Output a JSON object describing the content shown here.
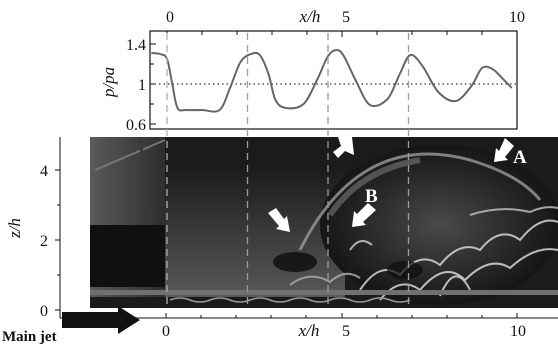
{
  "chart_data": {
    "type": "line",
    "title": "",
    "xlabel": "x/h",
    "ylabel": "p/pa",
    "xlim": [
      0,
      10
    ],
    "ylim": [
      0.6,
      1.4
    ],
    "x_ticks": [
      "0",
      "5",
      "10"
    ],
    "y_ticks": [
      "0.6",
      "1",
      "1.4"
    ],
    "reference_line": {
      "y": 1,
      "style": "dotted"
    },
    "series": [
      {
        "x": [
          -0.45,
          -0.2,
          0.0,
          0.15,
          0.3,
          0.55,
          1.0,
          1.5,
          1.8,
          2.1,
          2.4,
          2.65,
          2.9,
          3.1,
          3.4,
          3.9,
          4.3,
          4.6,
          4.85,
          5.05,
          5.4,
          5.8,
          6.3,
          6.65,
          6.95,
          7.3,
          7.75,
          8.25,
          8.7,
          9.0,
          9.3,
          9.6,
          9.85
        ],
        "y": [
          1.31,
          1.3,
          1.25,
          1.0,
          0.76,
          0.74,
          0.74,
          0.74,
          0.96,
          1.22,
          1.3,
          1.29,
          1.1,
          0.84,
          0.76,
          0.8,
          1.05,
          1.28,
          1.34,
          1.28,
          1.03,
          0.79,
          0.85,
          1.1,
          1.29,
          1.18,
          0.92,
          0.83,
          0.98,
          1.16,
          1.15,
          1.05,
          0.96
        ]
      }
    ]
  },
  "photo": {
    "top_axis_label": "x/h",
    "top_axis_ticks": [
      "0",
      "5",
      "10"
    ],
    "bottom_axis_label": "x/h",
    "bottom_axis_ticks": [
      "0",
      "5",
      "10"
    ],
    "left_axis_label": "z/h",
    "left_axis_ticks": [
      "0",
      "2",
      "4"
    ],
    "dashed_line_x": [
      0,
      2.3,
      4.6,
      6.9
    ],
    "annotations": [
      "A",
      "B"
    ],
    "main_jet_label": "Main jet"
  }
}
